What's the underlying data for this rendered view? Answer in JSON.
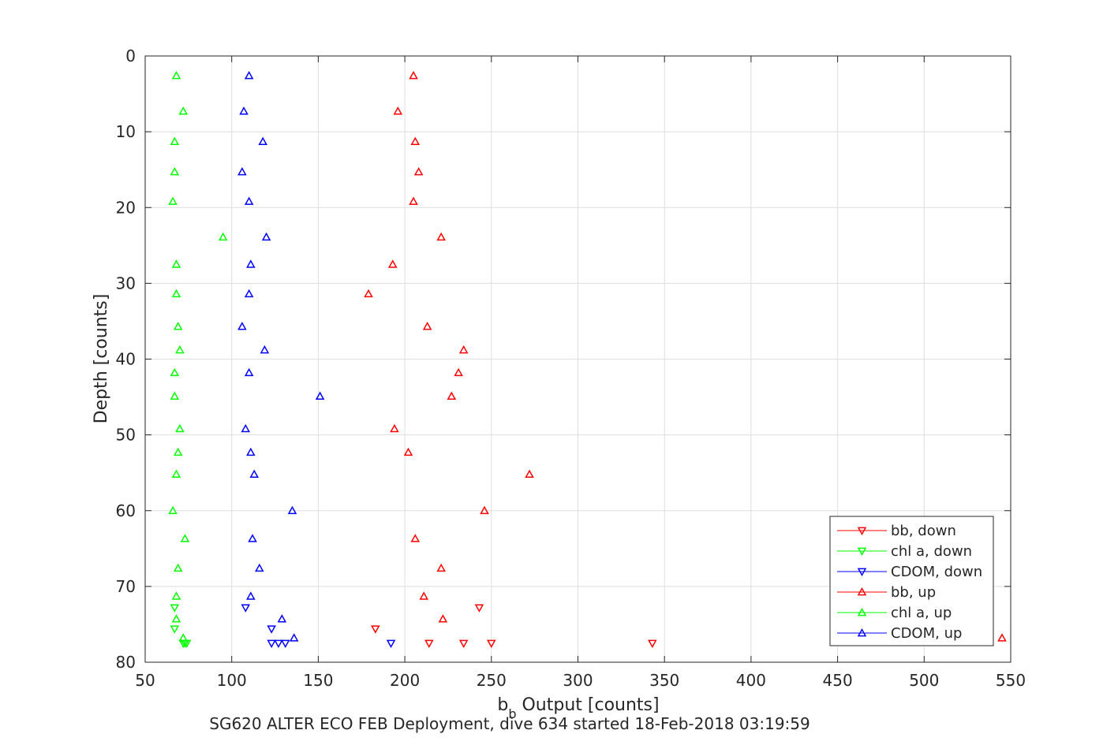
{
  "chart_data": {
    "type": "scatter",
    "xlabel_main": "b",
    "xlabel_sub": "b",
    "xlabel_rest": " Output [counts]",
    "ylabel": "Depth [counts]",
    "caption": "SG620 ALTER ECO FEB Deployment, dive 634 started 18-Feb-2018 03:19:59",
    "xlim": [
      50,
      550
    ],
    "ylim": [
      0,
      80
    ],
    "y_reversed": true,
    "grid": true,
    "legend_placement": "bottom-right",
    "x_ticks": [
      "50",
      "100",
      "150",
      "200",
      "250",
      "300",
      "350",
      "400",
      "450",
      "500",
      "550"
    ],
    "y_ticks": [
      "0",
      "10",
      "20",
      "30",
      "40",
      "50",
      "60",
      "70",
      "80"
    ],
    "series": [
      {
        "name": "bb, down",
        "color": "#ff0000",
        "marker": "triangle-down",
        "x": [
          243,
          183,
          214,
          234,
          250,
          343
        ],
        "y": [
          72.8,
          75.6,
          77.5,
          77.5,
          77.5,
          77.5
        ]
      },
      {
        "name": "chl a, down",
        "color": "#00ff00",
        "marker": "triangle-down",
        "x": [
          67,
          67,
          72,
          73,
          74
        ],
        "y": [
          72.8,
          75.6,
          77.5,
          77.5,
          77.5
        ]
      },
      {
        "name": "CDOM, down",
        "color": "#0000ff",
        "marker": "triangle-down",
        "x": [
          108,
          123,
          123,
          127,
          131,
          192
        ],
        "y": [
          72.8,
          75.6,
          77.5,
          77.5,
          77.5,
          77.5
        ]
      },
      {
        "name": "bb, up",
        "color": "#ff0000",
        "marker": "triangle-up",
        "x": [
          205,
          196,
          206,
          208,
          205,
          221,
          193,
          179,
          213,
          234,
          231,
          227,
          194,
          202,
          272,
          246,
          206,
          221,
          211,
          222,
          545
        ],
        "y": [
          2.6,
          7.3,
          11.3,
          15.3,
          19.2,
          23.9,
          27.5,
          31.4,
          35.7,
          38.8,
          41.8,
          44.9,
          49.2,
          52.3,
          55.2,
          60.0,
          63.7,
          67.6,
          71.3,
          74.3,
          76.8
        ]
      },
      {
        "name": "chl a, up",
        "color": "#00ff00",
        "marker": "triangle-up",
        "x": [
          68,
          72,
          67,
          67,
          66,
          95,
          68,
          68,
          69,
          70,
          67,
          67,
          70,
          69,
          68,
          66,
          73,
          69,
          68,
          68,
          72
        ],
        "y": [
          2.6,
          7.3,
          11.3,
          15.3,
          19.2,
          23.9,
          27.5,
          31.4,
          35.7,
          38.8,
          41.8,
          44.9,
          49.2,
          52.3,
          55.2,
          60.0,
          63.7,
          67.6,
          71.3,
          74.3,
          76.8
        ]
      },
      {
        "name": "CDOM, up",
        "color": "#0000ff",
        "marker": "triangle-up",
        "x": [
          110,
          107,
          118,
          106,
          110,
          120,
          111,
          110,
          106,
          119,
          110,
          151,
          108,
          111,
          113,
          135,
          112,
          116,
          111,
          129,
          136
        ],
        "y": [
          2.6,
          7.3,
          11.3,
          15.3,
          19.2,
          23.9,
          27.5,
          31.4,
          35.7,
          38.8,
          41.8,
          44.9,
          49.2,
          52.3,
          55.2,
          60.0,
          63.7,
          67.6,
          71.3,
          74.3,
          76.8
        ]
      }
    ]
  }
}
